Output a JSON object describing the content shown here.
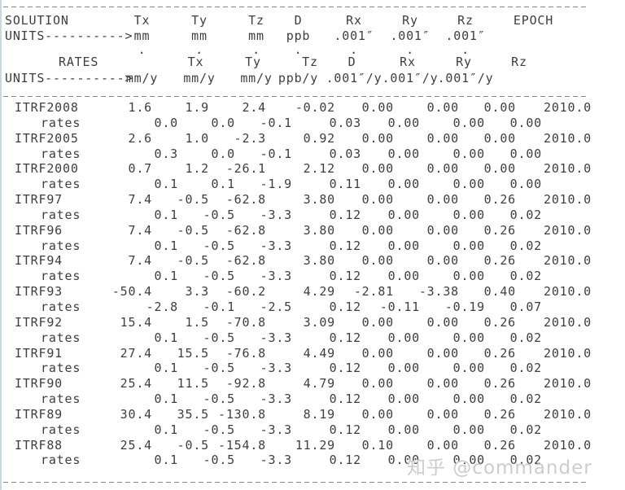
{
  "colors": {
    "text": "#3e3e3e",
    "rule": "#878787",
    "left_border": "#ccd8df",
    "watermark": "#cccccc"
  },
  "table": {
    "header": {
      "solution_label": "SOLUTION",
      "units_arrow": "UNITS---------->",
      "rates_label": "RATES",
      "rates_units_arrow": "UNITS---------->",
      "columns": [
        "Tx",
        "Ty",
        "Tz",
        "D",
        "Rx",
        "Ry",
        "Rz"
      ],
      "epoch_label": "EPOCH",
      "units": [
        "mm",
        "mm",
        "mm",
        "ppb",
        ".001″",
        ".001″",
        ".001″"
      ],
      "rate_units": [
        "mm/y",
        "mm/y",
        "mm/y",
        "ppb/y",
        ".001″/y",
        ".001″/y",
        ".001″/y"
      ],
      "rate_dot": "."
    },
    "rates_row_label": "rates",
    "rows": [
      {
        "name": "ITRF2008",
        "values": [
          "1.6",
          "1.9",
          "2.4",
          "-0.02",
          "0.00",
          "0.00",
          "0.00"
        ],
        "epoch": "2010.0",
        "rates": [
          "0.0",
          "0.0",
          "-0.1",
          "0.03",
          "0.00",
          "0.00",
          "0.00"
        ]
      },
      {
        "name": "ITRF2005",
        "values": [
          "2.6",
          "1.0",
          "-2.3",
          "0.92",
          "0.00",
          "0.00",
          "0.00"
        ],
        "epoch": "2010.0",
        "rates": [
          "0.3",
          "0.0",
          "-0.1",
          "0.03",
          "0.00",
          "0.00",
          "0.00"
        ]
      },
      {
        "name": "ITRF2000",
        "values": [
          "0.7",
          "1.2",
          "-26.1",
          "2.12",
          "0.00",
          "0.00",
          "0.00"
        ],
        "epoch": "2010.0",
        "rates": [
          "0.1",
          "0.1",
          "-1.9",
          "0.11",
          "0.00",
          "0.00",
          "0.00"
        ]
      },
      {
        "name": "ITRF97",
        "values": [
          "7.4",
          "-0.5",
          "-62.8",
          "3.80",
          "0.00",
          "0.00",
          "0.26"
        ],
        "epoch": "2010.0",
        "rates": [
          "0.1",
          "-0.5",
          "-3.3",
          "0.12",
          "0.00",
          "0.00",
          "0.02"
        ]
      },
      {
        "name": "ITRF96",
        "values": [
          "7.4",
          "-0.5",
          "-62.8",
          "3.80",
          "0.00",
          "0.00",
          "0.26"
        ],
        "epoch": "2010.0",
        "rates": [
          "0.1",
          "-0.5",
          "-3.3",
          "0.12",
          "0.00",
          "0.00",
          "0.02"
        ]
      },
      {
        "name": "ITRF94",
        "values": [
          "7.4",
          "-0.5",
          "-62.8",
          "3.80",
          "0.00",
          "0.00",
          "0.26"
        ],
        "epoch": "2010.0",
        "rates": [
          "0.1",
          "-0.5",
          "-3.3",
          "0.12",
          "0.00",
          "0.00",
          "0.02"
        ]
      },
      {
        "name": "ITRF93",
        "values": [
          "-50.4",
          "3.3",
          "-60.2",
          "4.29",
          "-2.81",
          "-3.38",
          "0.40"
        ],
        "epoch": "2010.0",
        "rates": [
          "-2.8",
          "-0.1",
          "-2.5",
          "0.12",
          "-0.11",
          "-0.19",
          "0.07"
        ]
      },
      {
        "name": "ITRF92",
        "values": [
          "15.4",
          "1.5",
          "-70.8",
          "3.09",
          "0.00",
          "0.00",
          "0.26"
        ],
        "epoch": "2010.0",
        "rates": [
          "0.1",
          "-0.5",
          "-3.3",
          "0.12",
          "0.00",
          "0.00",
          "0.02"
        ]
      },
      {
        "name": "ITRF91",
        "values": [
          "27.4",
          "15.5",
          "-76.8",
          "4.49",
          "0.00",
          "0.00",
          "0.26"
        ],
        "epoch": "2010.0",
        "rates": [
          "0.1",
          "-0.5",
          "-3.3",
          "0.12",
          "0.00",
          "0.00",
          "0.02"
        ]
      },
      {
        "name": "ITRF90",
        "values": [
          "25.4",
          "11.5",
          "-92.8",
          "4.79",
          "0.00",
          "0.00",
          "0.26"
        ],
        "epoch": "2010.0",
        "rates": [
          "0.1",
          "-0.5",
          "-3.3",
          "0.12",
          "0.00",
          "0.00",
          "0.02"
        ]
      },
      {
        "name": "ITRF89",
        "values": [
          "30.4",
          "35.5",
          "-130.8",
          "8.19",
          "0.00",
          "0.00",
          "0.26"
        ],
        "epoch": "2010.0",
        "rates": [
          "0.1",
          "-0.5",
          "-3.3",
          "0.12",
          "0.00",
          "0.00",
          "0.02"
        ]
      },
      {
        "name": "ITRF88",
        "values": [
          "25.4",
          "-0.5",
          "-154.8",
          "11.29",
          "0.10",
          "0.00",
          "0.26"
        ],
        "epoch": "2010.0",
        "rates": [
          "0.1",
          "-0.5",
          "-3.3",
          "0.12",
          "0.00",
          "0.00",
          "0.02"
        ]
      }
    ]
  },
  "watermark": {
    "text": "知乎 @commander"
  }
}
